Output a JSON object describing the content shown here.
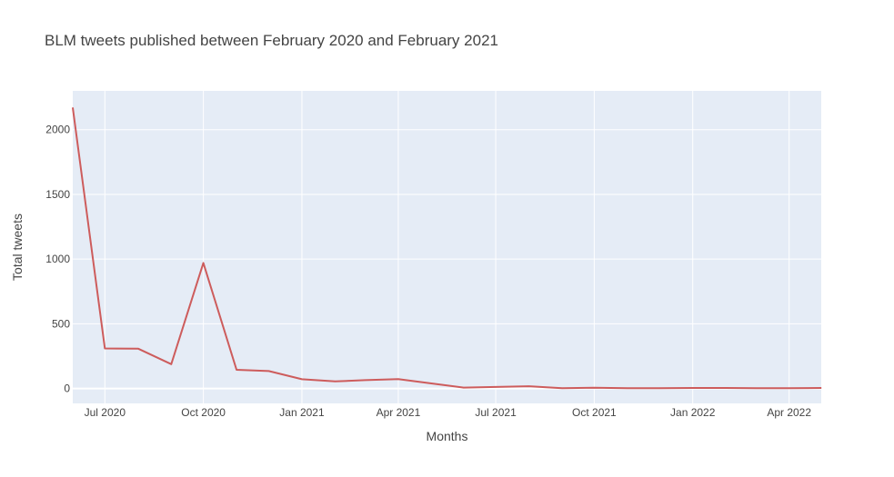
{
  "chart_data": {
    "type": "line",
    "title": "BLM tweets published between February 2020 and February 2021",
    "xlabel": "Months",
    "ylabel": "Total tweets",
    "x_range": [
      "2020-06-01",
      "2022-05-01"
    ],
    "ylim": [
      -115,
      2300
    ],
    "x_ticks": [
      {
        "date": "2020-07-01",
        "label": "Jul 2020"
      },
      {
        "date": "2020-10-01",
        "label": "Oct 2020"
      },
      {
        "date": "2021-01-01",
        "label": "Jan 2021"
      },
      {
        "date": "2021-04-01",
        "label": "Apr 2021"
      },
      {
        "date": "2021-07-01",
        "label": "Jul 2021"
      },
      {
        "date": "2021-10-01",
        "label": "Oct 2021"
      },
      {
        "date": "2022-01-01",
        "label": "Jan 2022"
      },
      {
        "date": "2022-04-01",
        "label": "Apr 2022"
      }
    ],
    "y_ticks": [
      0,
      500,
      1000,
      1500,
      2000
    ],
    "grid": true,
    "colors": {
      "line": "#cd5c5c",
      "plot_bg": "#e5ecf6",
      "grid": "#ffffff",
      "text": "#444444"
    },
    "series": [
      {
        "x": [
          "2020-06-01",
          "2020-07-01",
          "2020-08-01",
          "2020-09-01",
          "2020-10-01",
          "2020-11-01",
          "2020-12-01",
          "2021-01-01",
          "2021-02-01",
          "2021-03-01",
          "2021-04-01",
          "2021-05-01",
          "2021-06-01",
          "2021-07-01",
          "2021-08-01",
          "2021-09-01",
          "2021-10-01",
          "2021-11-01",
          "2021-12-01",
          "2022-01-01",
          "2022-02-01",
          "2022-03-01",
          "2022-04-01",
          "2022-05-01"
        ],
        "y": [
          2170,
          310,
          308,
          188,
          970,
          145,
          135,
          72,
          55,
          65,
          73,
          40,
          7,
          12,
          18,
          3,
          6,
          2,
          3,
          4,
          4,
          3,
          2,
          4
        ]
      }
    ]
  }
}
